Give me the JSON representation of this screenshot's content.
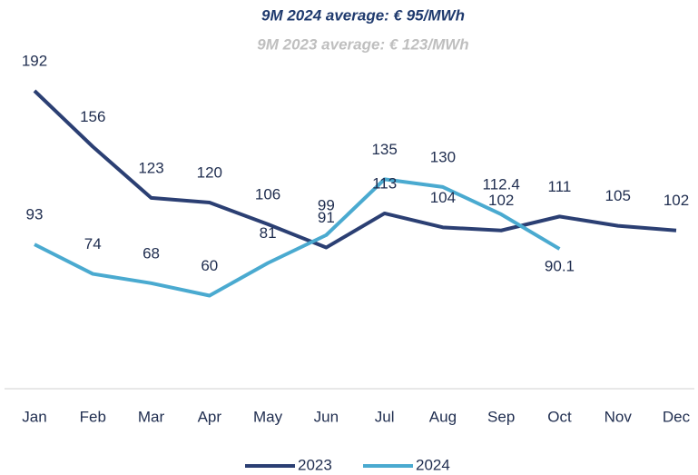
{
  "chart_data": {
    "type": "line",
    "title": "9M 2024 average: € 95/MWh",
    "subtitle": "9M 2023 average: € 123/MWh",
    "categories": [
      "Jan",
      "Feb",
      "Mar",
      "Apr",
      "May",
      "Jun",
      "Jul",
      "Aug",
      "Sep",
      "Oct",
      "Nov",
      "Dec"
    ],
    "series": [
      {
        "name": "2023",
        "color": "#2b3f73",
        "values": [
          192,
          156,
          123,
          120,
          106,
          91,
          113,
          104,
          102,
          111,
          105,
          102
        ]
      },
      {
        "name": "2024",
        "color": "#4aaad0",
        "values": [
          93,
          74,
          68,
          60,
          81,
          99,
          135,
          130,
          112.4,
          90.1,
          null,
          null
        ]
      }
    ],
    "legend": "bottom"
  }
}
